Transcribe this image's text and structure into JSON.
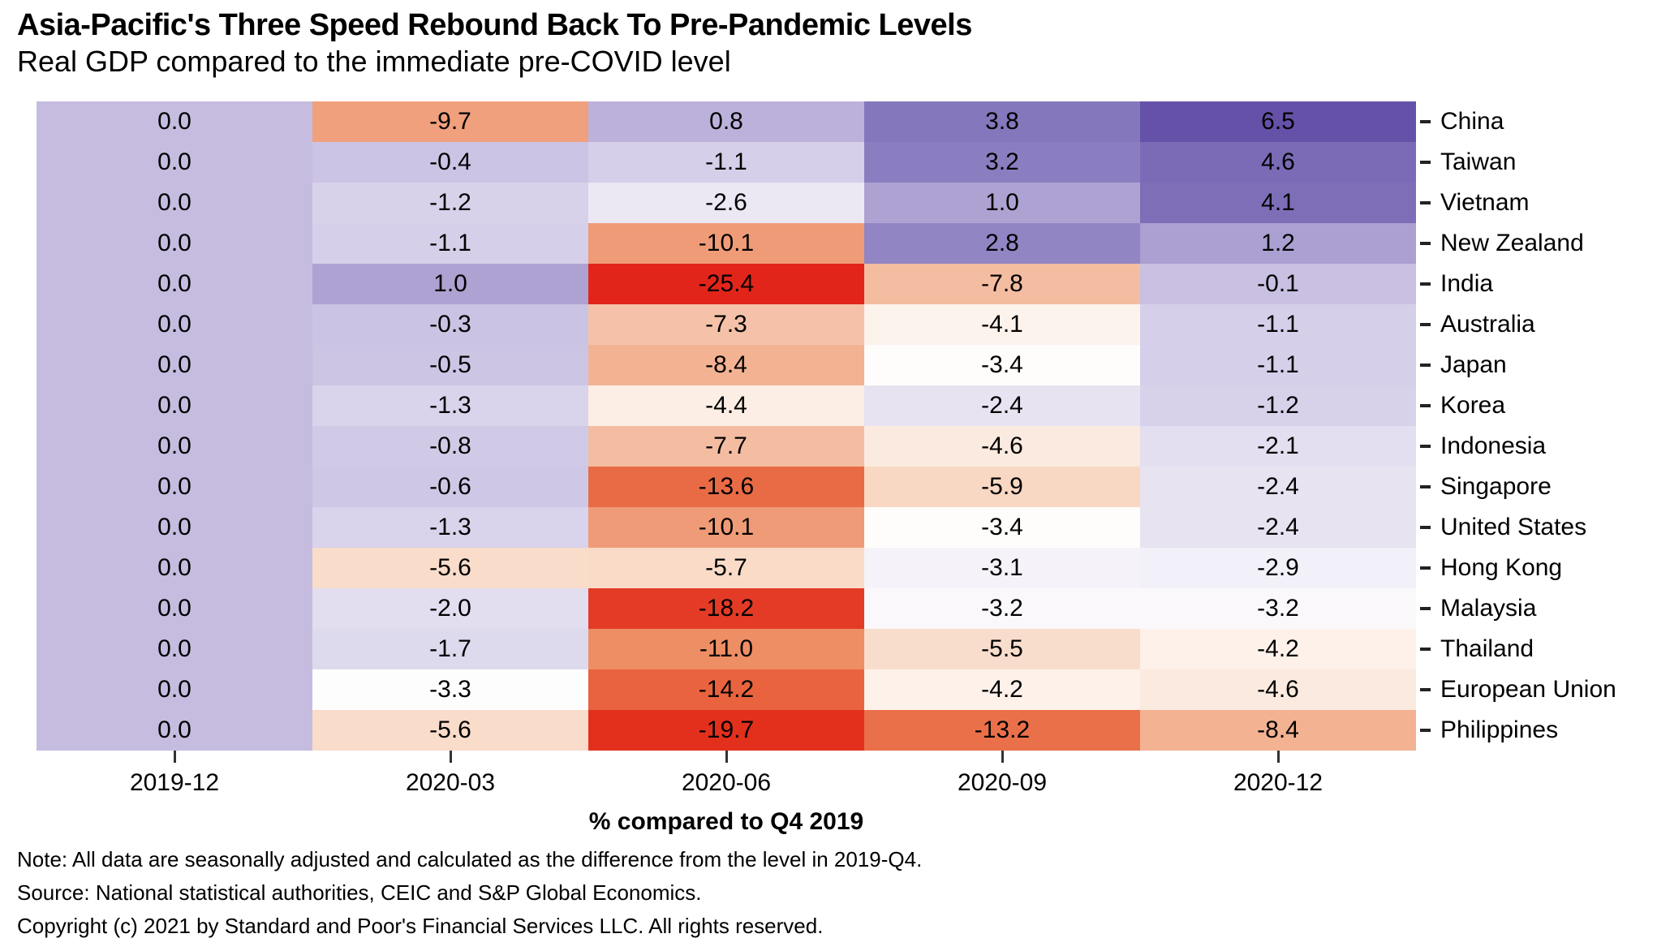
{
  "header": {
    "title": "Asia-Pacific's Three Speed Rebound Back To Pre-Pandemic Levels",
    "subtitle": "Real GDP compared to the immediate pre-COVID level"
  },
  "chart_data": {
    "type": "heatmap",
    "x_categories": [
      "2019-12",
      "2020-03",
      "2020-06",
      "2020-09",
      "2020-12"
    ],
    "y_categories": [
      "China",
      "Taiwan",
      "Vietnam",
      "New Zealand",
      "India",
      "Australia",
      "Japan",
      "Korea",
      "Indonesia",
      "Singapore",
      "United States",
      "Hong Kong",
      "Malaysia",
      "Thailand",
      "European Union",
      "Philippines"
    ],
    "values": [
      [
        0.0,
        -9.7,
        0.8,
        3.8,
        6.5
      ],
      [
        0.0,
        -0.4,
        -1.1,
        3.2,
        4.6
      ],
      [
        0.0,
        -1.2,
        -2.6,
        1.0,
        4.1
      ],
      [
        0.0,
        -1.1,
        -10.1,
        2.8,
        1.2
      ],
      [
        0.0,
        1.0,
        -25.4,
        -7.8,
        -0.1
      ],
      [
        0.0,
        -0.3,
        -7.3,
        -4.1,
        -1.1
      ],
      [
        0.0,
        -0.5,
        -8.4,
        -3.4,
        -1.1
      ],
      [
        0.0,
        -1.3,
        -4.4,
        -2.4,
        -1.2
      ],
      [
        0.0,
        -0.8,
        -7.7,
        -4.6,
        -2.1
      ],
      [
        0.0,
        -0.6,
        -13.6,
        -5.9,
        -2.4
      ],
      [
        0.0,
        -1.3,
        -10.1,
        -3.4,
        -2.4
      ],
      [
        0.0,
        -5.6,
        -5.7,
        -3.1,
        -2.9
      ],
      [
        0.0,
        -2.0,
        -18.2,
        -3.2,
        -3.2
      ],
      [
        0.0,
        -1.7,
        -11.0,
        -5.5,
        -4.2
      ],
      [
        0.0,
        -3.3,
        -14.2,
        -4.2,
        -4.6
      ],
      [
        0.0,
        -5.6,
        -19.7,
        -13.2,
        -8.4
      ]
    ],
    "xlabel": "% compared to Q4 2019",
    "value_decimals": 1,
    "grid": false,
    "legend": "none",
    "color_scale": {
      "type": "diverging",
      "low_color": "#e1251a",
      "mid_color": "#fffdfc",
      "high_color": "#6551a8",
      "anchors": [
        [
          -25.4,
          "#e1251a"
        ],
        [
          -19.7,
          "#e2301d"
        ],
        [
          -18.2,
          "#e33b26"
        ],
        [
          -14.2,
          "#e8633e"
        ],
        [
          -13.6,
          "#e96b45"
        ],
        [
          -11.0,
          "#ee8e65"
        ],
        [
          -10.1,
          "#f09b77"
        ],
        [
          -9.7,
          "#f1a07d"
        ],
        [
          -8.4,
          "#f3b393"
        ],
        [
          -7.8,
          "#f4bca0"
        ],
        [
          -7.3,
          "#f5c2a9"
        ],
        [
          -5.9,
          "#f8d8c3"
        ],
        [
          -5.5,
          "#f9ddcc"
        ],
        [
          -4.6,
          "#fbeadf"
        ],
        [
          -4.1,
          "#fdf3ed"
        ],
        [
          -3.4,
          "#fffdfb"
        ],
        [
          -3.3,
          "#fefdfd"
        ],
        [
          -3.1,
          "#f5f3f9"
        ],
        [
          -2.9,
          "#f2f0f8"
        ],
        [
          -2.4,
          "#e7e3f1"
        ],
        [
          -2.0,
          "#e2ddef"
        ],
        [
          -1.7,
          "#dedaed"
        ],
        [
          -1.2,
          "#d8d1ea"
        ],
        [
          -1.1,
          "#d6cfe9"
        ],
        [
          -0.8,
          "#d1cae6"
        ],
        [
          -0.5,
          "#cdc5e4"
        ],
        [
          -0.1,
          "#c9c0e2"
        ],
        [
          0.0,
          "#c6bce0"
        ],
        [
          0.8,
          "#bcb1da"
        ],
        [
          1.0,
          "#aea2d2"
        ],
        [
          1.2,
          "#aba0d1"
        ],
        [
          2.8,
          "#9285c4"
        ],
        [
          3.2,
          "#8b7ec0"
        ],
        [
          3.8,
          "#8577bb"
        ],
        [
          4.1,
          "#7e6eb7"
        ],
        [
          4.6,
          "#7b6ab5"
        ],
        [
          6.5,
          "#6551a8"
        ]
      ]
    }
  },
  "footer": {
    "note": "Note: All data are seasonally adjusted and calculated as the difference from the level in 2019-Q4.",
    "source": "Source: National statistical authorities, CEIC and S&P Global Economics.",
    "copyright": "Copyright (c) 2021 by Standard and Poor's Financial Services LLC. All rights reserved."
  }
}
